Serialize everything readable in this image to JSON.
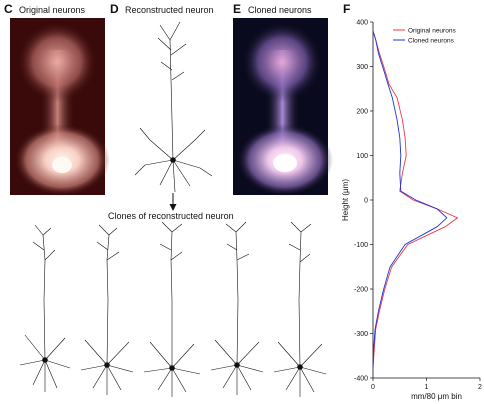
{
  "panels": {
    "c": {
      "letter": "C",
      "title": "Original neurons"
    },
    "d": {
      "letter": "D",
      "title": "Reconstructed neuron"
    },
    "e": {
      "letter": "E",
      "title": "Cloned neurons"
    },
    "f": {
      "letter": "F"
    },
    "clones": {
      "title": "Clones of reconstructed neuron",
      "count": 5
    }
  },
  "colors": {
    "original_bg": "#3a0a0a",
    "original_glow": "#f5c6c0",
    "cloned_bg": "#0a0a1e",
    "cloned_glow": "#e6c8f0",
    "original_line": "#e8394a",
    "cloned_line": "#1f34d6"
  },
  "chart_data": {
    "type": "line",
    "xlabel": "mm/80 μm bin",
    "ylabel": "Height (μm)",
    "xlim": [
      0,
      2
    ],
    "ylim": [
      -400,
      400
    ],
    "xticks": [
      0,
      1,
      2
    ],
    "yticks": [
      -400,
      -300,
      -200,
      -100,
      0,
      100,
      200,
      300,
      400
    ],
    "legend_placement": "top-right",
    "series": [
      {
        "name": "Original neurons",
        "color": "#e8394a",
        "y": [
          380,
          360,
          330,
          300,
          260,
          230,
          180,
          140,
          100,
          60,
          20,
          0,
          -20,
          -40,
          -60,
          -100,
          -150,
          -200,
          -250,
          -290,
          -340,
          -380
        ],
        "x": [
          0.0,
          0.05,
          0.12,
          0.2,
          0.3,
          0.45,
          0.55,
          0.6,
          0.62,
          0.55,
          0.5,
          0.75,
          1.2,
          1.58,
          1.35,
          0.65,
          0.35,
          0.22,
          0.12,
          0.05,
          0.02,
          0.0
        ]
      },
      {
        "name": "Cloned neurons",
        "color": "#1f34d6",
        "y": [
          380,
          360,
          330,
          300,
          260,
          230,
          180,
          140,
          100,
          60,
          20,
          0,
          -20,
          -40,
          -60,
          -100,
          -150,
          -200,
          -250,
          -290,
          -340,
          -380
        ],
        "x": [
          0.0,
          0.05,
          0.1,
          0.18,
          0.28,
          0.36,
          0.45,
          0.5,
          0.52,
          0.5,
          0.52,
          0.8,
          1.2,
          1.38,
          1.2,
          0.6,
          0.32,
          0.2,
          0.1,
          0.04,
          0.01,
          0.0
        ]
      }
    ]
  }
}
